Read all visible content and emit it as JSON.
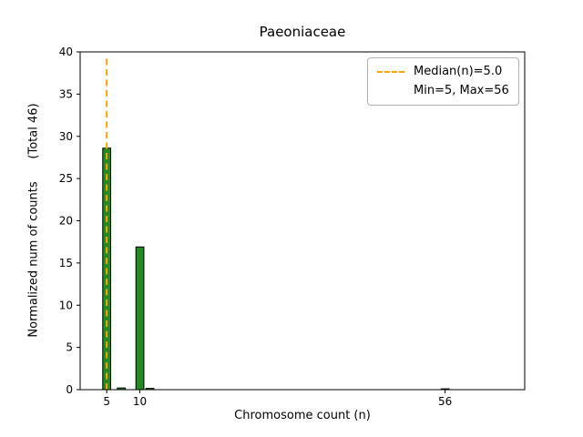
{
  "chart_data": {
    "type": "bar",
    "title": "Paeoniaceae",
    "xlabel": "Chromosome count (n)",
    "ylabel": "Normalized num of counts      (Total 46)",
    "total": 46,
    "xlim": [
      1,
      68
    ],
    "ylim": [
      0,
      40
    ],
    "xticks": [
      5,
      10,
      56
    ],
    "yticks": [
      0,
      5,
      10,
      15,
      20,
      25,
      30,
      35,
      40
    ],
    "bars": [
      {
        "x": 5,
        "height": 28.6
      },
      {
        "x": 7.2,
        "height": 0.2
      },
      {
        "x": 10,
        "height": 16.9
      },
      {
        "x": 11.5,
        "height": 0.15
      },
      {
        "x": 56,
        "height": 0.1
      }
    ],
    "bar_width": 1.2,
    "bar_color": "#228B22",
    "bar_edge_color": "#000000",
    "median_line": {
      "x": 5,
      "top": 39.6,
      "color": "#FFA500",
      "width": 2,
      "dash": "7 4.5"
    },
    "legend": {
      "median_label": "Median(n)=5.0",
      "minmax_label": "Min=5, Max=56"
    },
    "grid": false,
    "legend_position": "top-right"
  }
}
